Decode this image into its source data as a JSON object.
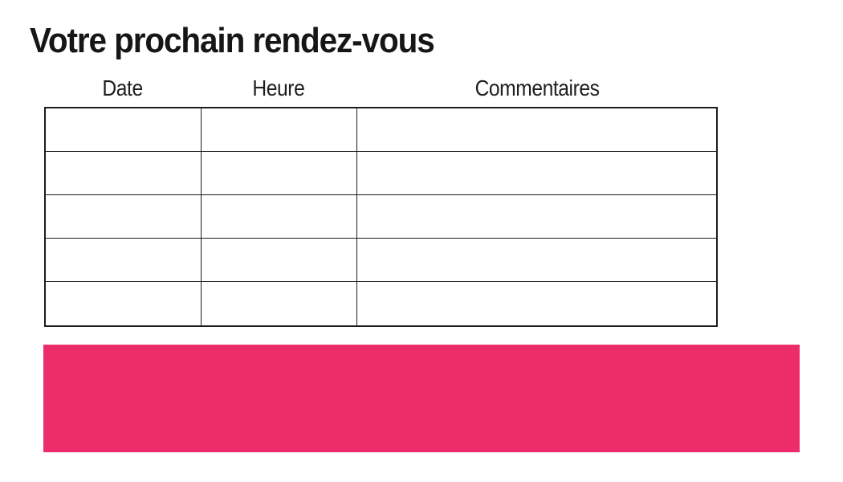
{
  "page": {
    "title": "Votre prochain rendez-vous"
  },
  "appointments_table": {
    "columns": [
      {
        "label": "Date"
      },
      {
        "label": "Heure"
      },
      {
        "label": "Commentaires"
      }
    ],
    "rows": [
      [
        "",
        "",
        ""
      ],
      [
        "",
        "",
        ""
      ],
      [
        "",
        "",
        ""
      ],
      [
        "",
        "",
        ""
      ],
      [
        "",
        "",
        ""
      ]
    ]
  },
  "banner": {
    "color": "#ED2D6B"
  }
}
